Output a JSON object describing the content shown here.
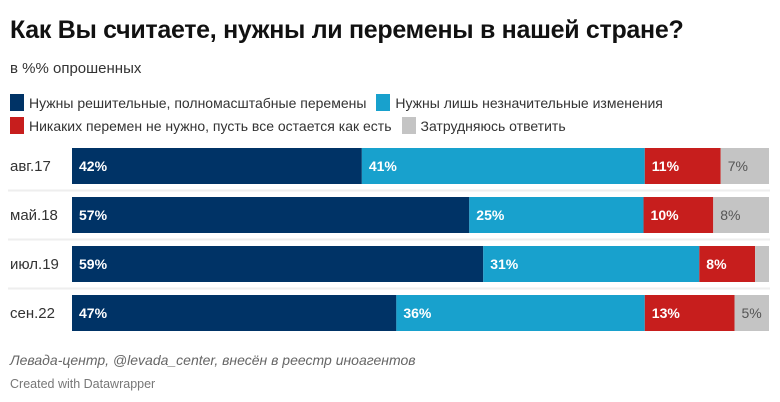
{
  "title": "Как Вы считаете, нужны ли перемены в нашей стране?",
  "subtitle": "в %% опрошенных",
  "footer": {
    "source": "Левада-центр, @levada_center, внесён в реестр иноагентов",
    "credit": "Created with Datawrapper"
  },
  "chart_data": {
    "type": "bar",
    "orientation": "horizontal",
    "stacked": true,
    "categories": [
      "авг.17",
      "май.18",
      "июл.19",
      "сен.22"
    ],
    "series": [
      {
        "name": "Нужны решительные, полномасштабные перемены",
        "color": "#003366",
        "label_color": "#ffffff",
        "values": [
          42,
          57,
          59,
          47
        ]
      },
      {
        "name": "Нужны лишь незначительные изменения",
        "color": "#18a1cd",
        "label_color": "#ffffff",
        "values": [
          41,
          25,
          31,
          36
        ]
      },
      {
        "name": "Никаких перемен не нужно, пусть все остается как есть",
        "color": "#c71e1d",
        "label_color": "#ffffff",
        "values": [
          11,
          10,
          8,
          13
        ]
      },
      {
        "name": "Затрудняюсь ответить",
        "color": "#c4c4c4",
        "label_color": "#555555",
        "values": [
          7,
          8,
          2,
          5
        ]
      }
    ],
    "labels": [
      [
        "42%",
        "41%",
        "11%",
        "7%"
      ],
      [
        "57%",
        "25%",
        "10%",
        "8%"
      ],
      [
        "59%",
        "31%",
        "8%",
        ""
      ],
      [
        "47%",
        "36%",
        "13%",
        "5%"
      ]
    ],
    "legend": "top"
  }
}
